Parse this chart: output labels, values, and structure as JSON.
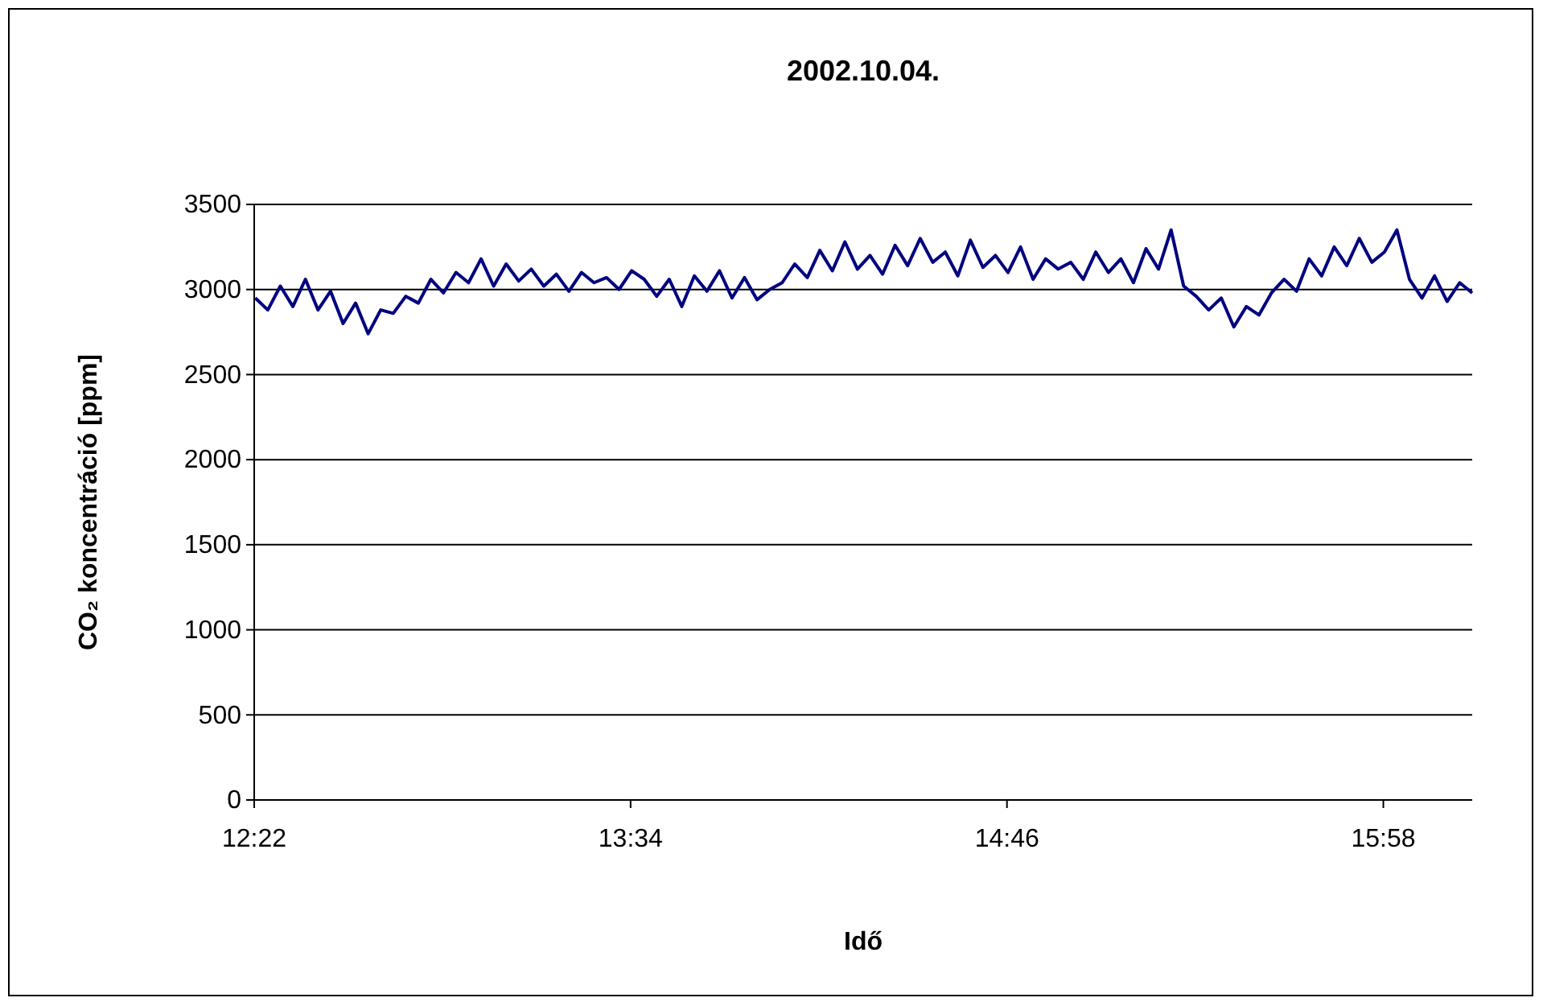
{
  "chart_data": {
    "type": "line",
    "title": "2002.10.04.",
    "xlabel": "Idő",
    "ylabel": "CO₂ koncentráció [ppm]",
    "x": [
      12.37,
      12.41,
      12.45,
      12.49,
      12.53,
      12.57,
      12.61,
      12.65,
      12.69,
      12.73,
      12.77,
      12.81,
      12.85,
      12.89,
      12.93,
      12.97,
      13.01,
      13.05,
      13.09,
      13.13,
      13.17,
      13.21,
      13.25,
      13.29,
      13.33,
      13.37,
      13.41,
      13.45,
      13.49,
      13.53,
      13.57,
      13.61,
      13.65,
      13.69,
      13.73,
      13.77,
      13.81,
      13.85,
      13.89,
      13.93,
      13.97,
      14.01,
      14.05,
      14.09,
      14.13,
      14.17,
      14.21,
      14.25,
      14.29,
      14.33,
      14.37,
      14.41,
      14.45,
      14.49,
      14.53,
      14.57,
      14.61,
      14.65,
      14.69,
      14.73,
      14.77,
      14.81,
      14.85,
      14.89,
      14.93,
      14.97,
      15.01,
      15.05,
      15.09,
      15.13,
      15.17,
      15.21,
      15.25,
      15.29,
      15.33,
      15.37,
      15.41,
      15.45,
      15.49,
      15.53,
      15.57,
      15.61,
      15.65,
      15.69,
      15.73,
      15.77,
      15.81,
      15.85,
      15.89,
      15.93,
      15.97,
      16.01,
      16.05,
      16.09,
      16.13,
      16.17,
      16.21,
      16.25
    ],
    "series": [
      {
        "color": "#000080",
        "values": [
          2950,
          2880,
          3020,
          2900,
          3060,
          2880,
          2990,
          2800,
          2920,
          2740,
          2880,
          2860,
          2960,
          2920,
          3060,
          2980,
          3100,
          3040,
          3180,
          3020,
          3150,
          3050,
          3120,
          3020,
          3090,
          2990,
          3100,
          3040,
          3070,
          3000,
          3110,
          3060,
          2960,
          3060,
          2900,
          3080,
          2990,
          3110,
          2950,
          3070,
          2940,
          3000,
          3040,
          3150,
          3070,
          3230,
          3110,
          3280,
          3120,
          3200,
          3090,
          3260,
          3140,
          3300,
          3160,
          3220,
          3080,
          3290,
          3130,
          3200,
          3100,
          3250,
          3060,
          3180,
          3120,
          3160,
          3060,
          3220,
          3100,
          3180,
          3040,
          3240,
          3120,
          3350,
          3020,
          2960,
          2880,
          2950,
          2780,
          2900,
          2850,
          2980,
          3060,
          2990,
          3180,
          3080,
          3250,
          3140,
          3300,
          3160,
          3220,
          3350,
          3060,
          2950,
          3080,
          2930,
          3040,
          2980
        ]
      }
    ],
    "xlim": [
      12.3667,
      16.25
    ],
    "xticks": [
      {
        "value": 12.3667,
        "label": "12:22"
      },
      {
        "value": 13.5667,
        "label": "13:34"
      },
      {
        "value": 14.7667,
        "label": "14:46"
      },
      {
        "value": 15.9667,
        "label": "15:58"
      }
    ],
    "ylim": [
      0,
      3500
    ],
    "yticks": [
      0,
      500,
      1000,
      1500,
      2000,
      2500,
      3000,
      3500
    ],
    "grid": "y",
    "marker": "none",
    "line_style": "solid"
  }
}
